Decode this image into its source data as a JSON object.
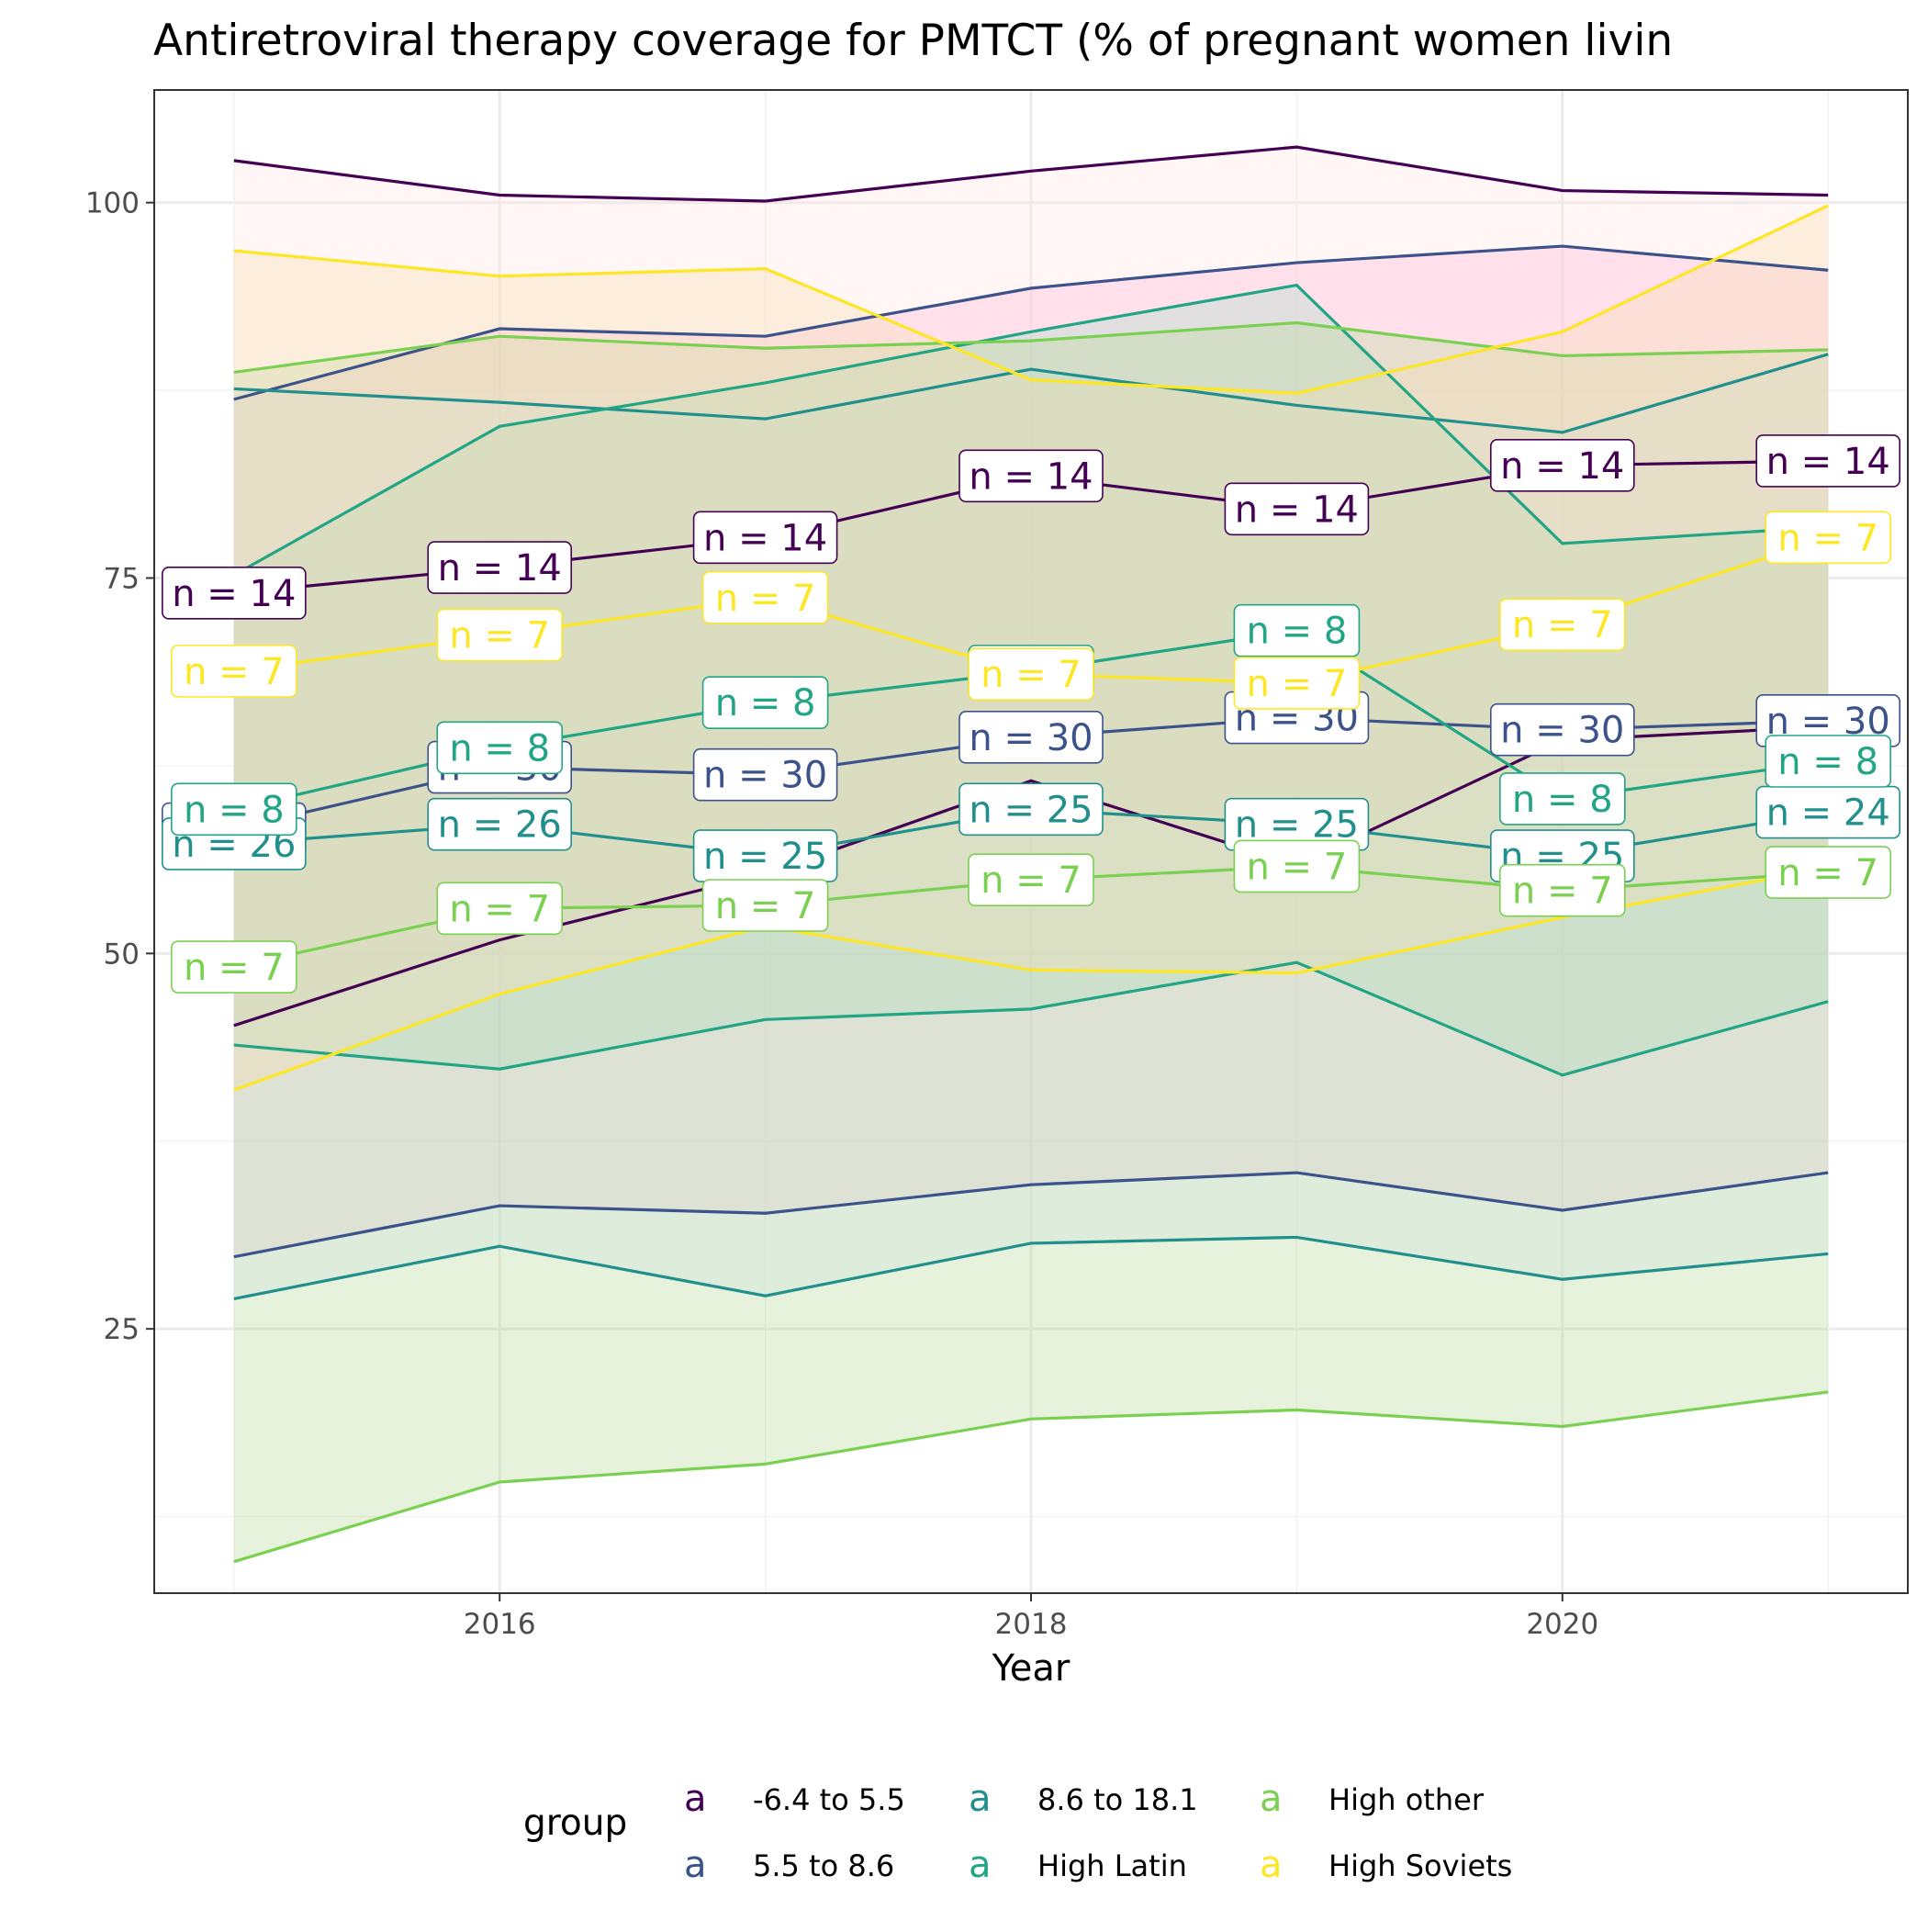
{
  "chart_data": {
    "type": "line",
    "title": "Antiretroviral therapy coverage for PMTCT (% of pregnant women livin",
    "xlabel": "Year",
    "ylabel": "",
    "x": [
      2015,
      2016,
      2017,
      2018,
      2019,
      2020,
      2021
    ],
    "xlim": [
      2014.7,
      2021.3
    ],
    "ylim": [
      7.4,
      107.5
    ],
    "xticks": [
      2016,
      2018,
      2020
    ],
    "yticks": [
      25,
      50,
      75,
      100
    ],
    "grid": true,
    "legend": {
      "title": "group",
      "position": "bottom",
      "key_glyph": "a",
      "entries": [
        "-6.4 to 5.5",
        "5.5 to 8.6",
        "8.6 to 18.1",
        "High Latin",
        "High other",
        "High Soviets"
      ]
    },
    "series": [
      {
        "name": "-6.4 to 5.5",
        "color": "#440154",
        "ribbon_fill": "#ffe4e1",
        "mean": [
          74.0,
          75.7,
          77.7,
          81.8,
          79.6,
          82.5,
          82.8
        ],
        "upper": [
          102.8,
          100.5,
          100.1,
          102.1,
          103.7,
          100.8,
          100.5
        ],
        "lower": [
          45.2,
          50.9,
          55.3,
          61.5,
          55.9,
          64.2,
          65.1
        ],
        "labels": [
          "n = 14",
          "n = 14",
          "n = 14",
          "n = 14",
          "n = 14",
          "n = 14",
          "n = 14"
        ]
      },
      {
        "name": "5.5 to 8.6",
        "color": "#3b528b",
        "ribbon_fill": "#ffb6d9",
        "mean": [
          58.3,
          62.4,
          61.9,
          64.4,
          65.7,
          64.9,
          65.5
        ],
        "upper": [
          86.9,
          91.6,
          91.1,
          94.3,
          96.0,
          97.1,
          95.5
        ],
        "lower": [
          29.8,
          33.2,
          32.7,
          34.6,
          35.4,
          32.9,
          35.4
        ],
        "labels": [
          "n = 30",
          "n = 30",
          "n = 30",
          "n = 30",
          "n = 30",
          "n = 30",
          "n = 30"
        ]
      },
      {
        "name": "8.6 to 18.1",
        "color": "#21908d",
        "ribbon_fill": "#d8e6fc",
        "mean": [
          57.3,
          58.6,
          56.5,
          59.6,
          58.6,
          56.5,
          59.4
        ],
        "upper": [
          87.6,
          86.7,
          85.6,
          88.9,
          86.5,
          84.7,
          89.9
        ],
        "lower": [
          27.0,
          30.5,
          27.2,
          30.7,
          31.1,
          28.3,
          30.0
        ],
        "labels": [
          "n = 26",
          "n = 26",
          "n = 25",
          "n = 25",
          "n = 25",
          "n = 25",
          "n = 24"
        ]
      },
      {
        "name": "High Latin",
        "color": "#21a585",
        "ribbon_fill": "#a8dccb",
        "mean": [
          59.6,
          63.7,
          66.7,
          68.8,
          71.5,
          60.3,
          62.8
        ],
        "upper": [
          75.2,
          85.1,
          88.0,
          91.4,
          94.5,
          77.3,
          78.4
        ],
        "lower": [
          43.9,
          42.3,
          45.6,
          46.3,
          49.4,
          41.9,
          46.8
        ],
        "labels": [
          "n = 8",
          "n = 8",
          "n = 8",
          "n = 8",
          "n = 8",
          "n = 8",
          "n = 8"
        ]
      },
      {
        "name": "High other",
        "color": "#7ad151",
        "ribbon_fill": "#b9d99a",
        "mean": [
          49.1,
          53.0,
          53.2,
          54.9,
          55.8,
          54.2,
          55.4
        ],
        "upper": [
          88.7,
          91.1,
          90.3,
          90.8,
          92.0,
          89.8,
          90.2
        ],
        "lower": [
          9.5,
          14.8,
          16.0,
          19.0,
          19.6,
          18.5,
          20.8
        ],
        "labels": [
          "n = 7",
          "n = 7",
          "n = 7",
          "n = 7",
          "n = 7",
          "n = 7",
          "n = 7"
        ]
      },
      {
        "name": "High Soviets",
        "color": "#fde725",
        "ribbon_fill": "#f5deb3",
        "mean": [
          68.8,
          71.2,
          73.7,
          68.6,
          68.0,
          71.9,
          77.7
        ],
        "upper": [
          96.8,
          95.1,
          95.6,
          88.2,
          87.3,
          91.4,
          99.8
        ],
        "lower": [
          40.9,
          47.3,
          51.8,
          48.9,
          48.7,
          52.4,
          55.7
        ],
        "labels": [
          "n = 7",
          "n = 7",
          "n = 7",
          "n = 7",
          "n = 7",
          "n = 7",
          "n = 7"
        ]
      }
    ]
  }
}
